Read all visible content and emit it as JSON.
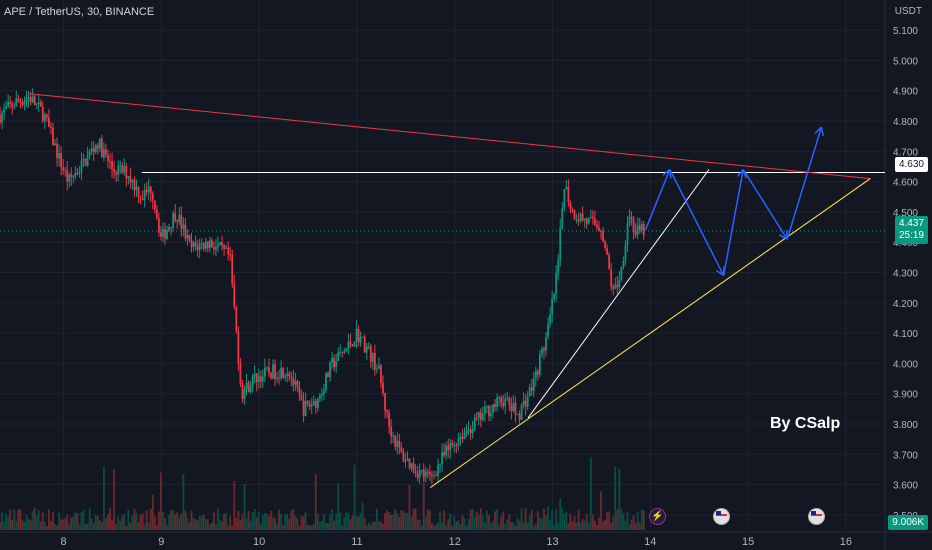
{
  "header": {
    "title": "APE / TetherUS, 30, BINANCE",
    "currency": "USDT",
    "author": "By CSalp"
  },
  "price_axis": {
    "ticks": [
      "5.100",
      "5.000",
      "4.900",
      "4.800",
      "4.700",
      "4.600",
      "4.500",
      "4.400",
      "4.300",
      "4.200",
      "4.100",
      "4.000",
      "3.900",
      "3.800",
      "3.700",
      "3.600",
      "3.500"
    ]
  },
  "time_axis": {
    "ticks": [
      "8",
      "9",
      "10",
      "11",
      "12",
      "13",
      "14",
      "15",
      "16"
    ]
  },
  "labels": {
    "level_price": "4.630",
    "last_price": "4.437",
    "countdown": "25:19",
    "volume": "9.006K"
  },
  "chart_data": {
    "type": "candlestick",
    "symbol": "APE / TetherUS",
    "interval": "30",
    "exchange": "BINANCE",
    "ylabel": "USDT",
    "ylim": [
      3.45,
      5.15
    ],
    "xlim": [
      7.35,
      16.4
    ],
    "last_price": 4.437,
    "price_path": [
      [
        7.35,
        4.82
      ],
      [
        7.5,
        4.86
      ],
      [
        7.65,
        4.88
      ],
      [
        7.8,
        4.82
      ],
      [
        7.95,
        4.68
      ],
      [
        8.05,
        4.6
      ],
      [
        8.2,
        4.66
      ],
      [
        8.35,
        4.73
      ],
      [
        8.5,
        4.64
      ],
      [
        8.65,
        4.63
      ],
      [
        8.8,
        4.55
      ],
      [
        8.9,
        4.58
      ],
      [
        9.0,
        4.41
      ],
      [
        9.15,
        4.5
      ],
      [
        9.3,
        4.38
      ],
      [
        9.5,
        4.4
      ],
      [
        9.7,
        4.35
      ],
      [
        9.82,
        3.9
      ],
      [
        9.95,
        3.95
      ],
      [
        10.1,
        3.97
      ],
      [
        10.3,
        3.98
      ],
      [
        10.45,
        3.85
      ],
      [
        10.6,
        3.88
      ],
      [
        10.75,
        4.0
      ],
      [
        10.9,
        4.05
      ],
      [
        11.0,
        4.1
      ],
      [
        11.1,
        4.05
      ],
      [
        11.22,
        3.98
      ],
      [
        11.32,
        3.8
      ],
      [
        11.45,
        3.7
      ],
      [
        11.6,
        3.65
      ],
      [
        11.75,
        3.62
      ],
      [
        11.9,
        3.7
      ],
      [
        12.05,
        3.76
      ],
      [
        12.2,
        3.8
      ],
      [
        12.35,
        3.85
      ],
      [
        12.5,
        3.88
      ],
      [
        12.65,
        3.83
      ],
      [
        12.8,
        3.93
      ],
      [
        12.95,
        4.1
      ],
      [
        13.05,
        4.3
      ],
      [
        13.12,
        4.6
      ],
      [
        13.2,
        4.5
      ],
      [
        13.35,
        4.47
      ],
      [
        13.5,
        4.45
      ],
      [
        13.62,
        4.23
      ],
      [
        13.7,
        4.3
      ],
      [
        13.78,
        4.5
      ],
      [
        13.85,
        4.43
      ],
      [
        13.95,
        4.44
      ]
    ],
    "horizontal_line": {
      "price": 4.63,
      "from": 8.8,
      "to": 16.4,
      "color": "#ffffff"
    },
    "trendlines": [
      {
        "name": "descending resistance",
        "color": "#f23645",
        "points": [
          [
            7.65,
            4.89
          ],
          [
            16.25,
            4.61
          ]
        ]
      },
      {
        "name": "steep support",
        "color": "#ffffff",
        "points": [
          [
            12.75,
            3.82
          ],
          [
            14.6,
            4.64
          ]
        ]
      },
      {
        "name": "ascending support",
        "color": "#ffeb3b",
        "points": [
          [
            11.75,
            3.59
          ],
          [
            16.25,
            4.61
          ]
        ]
      }
    ],
    "projection_path": {
      "color": "#2962ff",
      "points": [
        [
          13.95,
          4.44
        ],
        [
          14.2,
          4.64
        ],
        [
          14.75,
          4.29
        ],
        [
          14.95,
          4.64
        ],
        [
          15.4,
          4.41
        ],
        [
          15.75,
          4.78
        ]
      ]
    },
    "volume_scale_max_k": 9.006,
    "current_volume": "9.006K",
    "events": [
      "lightning",
      "US",
      "US"
    ]
  }
}
